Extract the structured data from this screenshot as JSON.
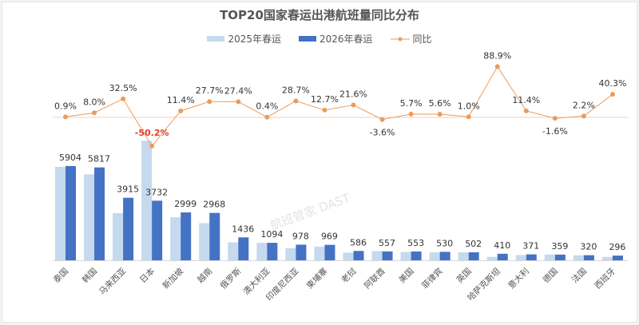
{
  "chart_data": {
    "type": "bar",
    "title": "TOP20国家春运出港航班量同比分布",
    "categories": [
      "泰国",
      "韩国",
      "马来西亚",
      "日本",
      "新加坡",
      "越南",
      "俄罗斯",
      "澳大利亚",
      "印度尼西亚",
      "柬埔寨",
      "老挝",
      "阿联酋",
      "美国",
      "菲律宾",
      "英国",
      "哈萨克斯坦",
      "意大利",
      "德国",
      "法国",
      "西班牙"
    ],
    "series": [
      {
        "name": "2025年春运",
        "type": "bar",
        "color": "#c5d9ef",
        "values": [
          5851,
          5386,
          2955,
          7494,
          2692,
          2324,
          1127,
          1090,
          760,
          860,
          482,
          578,
          523,
          502,
          497,
          217,
          333,
          365,
          313,
          211
        ]
      },
      {
        "name": "2026年春运",
        "type": "bar",
        "color": "#4472c4",
        "values": [
          5904,
          5817,
          3915,
          3732,
          2999,
          2968,
          1436,
          1094,
          978,
          969,
          586,
          557,
          553,
          530,
          502,
          410,
          371,
          359,
          320,
          296
        ],
        "labels": [
          "5904",
          "5817",
          "3915",
          "3732",
          "2999",
          "2968",
          "1436",
          "1094",
          "978",
          "969",
          "586",
          "557",
          "553",
          "530",
          "502",
          "410",
          "371",
          "359",
          "320",
          "296"
        ]
      },
      {
        "name": "同比",
        "type": "line",
        "color": "#ed9b59",
        "unit": "%",
        "values": [
          0.9,
          8.0,
          32.5,
          -50.2,
          11.4,
          27.7,
          27.4,
          0.4,
          28.7,
          12.7,
          21.6,
          -3.6,
          5.7,
          5.6,
          1.0,
          88.9,
          11.4,
          -1.6,
          2.2,
          40.3
        ],
        "labels": [
          "0.9%",
          "8.0%",
          "32.5%",
          "-50.2%",
          "11.4%",
          "27.7%",
          "27.4%",
          "0.4%",
          "28.7%",
          "12.7%",
          "21.6%",
          "-3.6%",
          "5.7%",
          "5.6%",
          "1.0%",
          "88.9%",
          "11.4%",
          "-1.6%",
          "2.2%",
          "40.3%"
        ]
      }
    ],
    "highlight_color": "#e23b2e",
    "legend": "top",
    "grid": false
  },
  "watermark": "航班管家 DAST"
}
